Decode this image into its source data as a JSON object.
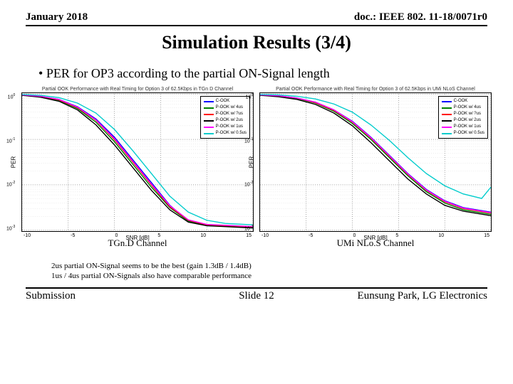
{
  "header": {
    "left": "January 2018",
    "right": "doc.: IEEE 802. 11-18/0071r0"
  },
  "title": "Simulation Results (3/4)",
  "bullet": "PER for OP3 according to the partial ON-Signal length",
  "legend": {
    "items": [
      {
        "label": "C-OOK",
        "color": "#0000ff"
      },
      {
        "label": "P-OOK w/ 4us",
        "color": "#008000"
      },
      {
        "label": "P-OOK w/ ?us",
        "color": "#ff0000"
      },
      {
        "label": "P-OOK w/ 2us",
        "color": "#000000"
      },
      {
        "label": "P-OOK w/ 1us",
        "color": "#ff00ff"
      },
      {
        "label": "P-OOK w/ 0.5us",
        "color": "#00cccc"
      }
    ]
  },
  "axes": {
    "ylabel": "PER",
    "xlabel": "SNR [dB]",
    "xlim": [
      -10,
      15
    ],
    "xticks": [
      -10,
      -5,
      0,
      5,
      10,
      15
    ],
    "ylim_exp": [
      -3,
      0
    ],
    "ytick_exp": [
      0,
      -1,
      -2,
      -3
    ],
    "grid_color": "#404040",
    "minor_grid_color": "#d0d0d0",
    "line_width": 1.4
  },
  "chart_left": {
    "small_title": "Partial OOK Performance with Real Timing for Option 3 of 62.5Kbps in TGn D Channel",
    "caption": "TGn.D Channel",
    "series": [
      {
        "color": "#0000ff",
        "pts": [
          [
            -10,
            -0.02
          ],
          [
            -8,
            -0.05
          ],
          [
            -6,
            -0.12
          ],
          [
            -4,
            -0.28
          ],
          [
            -2,
            -0.55
          ],
          [
            0,
            -0.95
          ],
          [
            2,
            -1.45
          ],
          [
            4,
            -1.95
          ],
          [
            6,
            -2.45
          ],
          [
            8,
            -2.8
          ],
          [
            10,
            -2.9
          ],
          [
            12,
            -2.9
          ],
          [
            15,
            -2.95
          ]
        ]
      },
      {
        "color": "#008000",
        "pts": [
          [
            -10,
            -0.02
          ],
          [
            -8,
            -0.06
          ],
          [
            -6,
            -0.14
          ],
          [
            -4,
            -0.32
          ],
          [
            -2,
            -0.62
          ],
          [
            0,
            -1.05
          ],
          [
            2,
            -1.55
          ],
          [
            4,
            -2.05
          ],
          [
            6,
            -2.5
          ],
          [
            8,
            -2.8
          ],
          [
            10,
            -2.88
          ],
          [
            12,
            -2.9
          ],
          [
            15,
            -2.93
          ]
        ]
      },
      {
        "color": "#ff0000",
        "pts": [
          [
            -10,
            -0.02
          ],
          [
            -8,
            -0.05
          ],
          [
            -6,
            -0.13
          ],
          [
            -4,
            -0.3
          ],
          [
            -2,
            -0.58
          ],
          [
            0,
            -1.0
          ],
          [
            2,
            -1.5
          ],
          [
            4,
            -2.0
          ],
          [
            6,
            -2.48
          ],
          [
            8,
            -2.78
          ],
          [
            10,
            -2.88
          ],
          [
            12,
            -2.9
          ],
          [
            15,
            -2.93
          ]
        ]
      },
      {
        "color": "#000000",
        "pts": [
          [
            -10,
            -0.03
          ],
          [
            -8,
            -0.07
          ],
          [
            -6,
            -0.16
          ],
          [
            -4,
            -0.35
          ],
          [
            -2,
            -0.68
          ],
          [
            0,
            -1.12
          ],
          [
            2,
            -1.62
          ],
          [
            4,
            -2.12
          ],
          [
            6,
            -2.55
          ],
          [
            8,
            -2.82
          ],
          [
            10,
            -2.9
          ],
          [
            12,
            -2.92
          ],
          [
            15,
            -2.95
          ]
        ]
      },
      {
        "color": "#ff00ff",
        "pts": [
          [
            -10,
            -0.02
          ],
          [
            -8,
            -0.05
          ],
          [
            -6,
            -0.12
          ],
          [
            -4,
            -0.29
          ],
          [
            -2,
            -0.57
          ],
          [
            0,
            -0.98
          ],
          [
            2,
            -1.48
          ],
          [
            4,
            -1.98
          ],
          [
            6,
            -2.46
          ],
          [
            8,
            -2.77
          ],
          [
            10,
            -2.87
          ],
          [
            12,
            -2.89
          ],
          [
            15,
            -2.92
          ]
        ]
      },
      {
        "color": "#00cccc",
        "pts": [
          [
            -10,
            -0.01
          ],
          [
            -8,
            -0.03
          ],
          [
            -6,
            -0.08
          ],
          [
            -4,
            -0.2
          ],
          [
            -2,
            -0.42
          ],
          [
            0,
            -0.78
          ],
          [
            2,
            -1.25
          ],
          [
            4,
            -1.75
          ],
          [
            6,
            -2.25
          ],
          [
            8,
            -2.6
          ],
          [
            10,
            -2.78
          ],
          [
            12,
            -2.85
          ],
          [
            15,
            -2.88
          ]
        ]
      }
    ]
  },
  "chart_right": {
    "small_title": "Partial OOK Performance with Real Timing for Option 3 of 62.5Kbps in UMi NLoS Channel",
    "caption": "UMi NLo.S Channel",
    "series": [
      {
        "color": "#0000ff",
        "pts": [
          [
            -10,
            -0.02
          ],
          [
            -8,
            -0.04
          ],
          [
            -6,
            -0.09
          ],
          [
            -4,
            -0.18
          ],
          [
            -2,
            -0.35
          ],
          [
            0,
            -0.6
          ],
          [
            2,
            -0.95
          ],
          [
            4,
            -1.35
          ],
          [
            6,
            -1.75
          ],
          [
            8,
            -2.1
          ],
          [
            10,
            -2.35
          ],
          [
            12,
            -2.5
          ],
          [
            15,
            -2.6
          ]
        ]
      },
      {
        "color": "#008000",
        "pts": [
          [
            -10,
            -0.02
          ],
          [
            -8,
            -0.05
          ],
          [
            -6,
            -0.1
          ],
          [
            -4,
            -0.2
          ],
          [
            -2,
            -0.38
          ],
          [
            0,
            -0.65
          ],
          [
            2,
            -1.0
          ],
          [
            4,
            -1.4
          ],
          [
            6,
            -1.8
          ],
          [
            8,
            -2.15
          ],
          [
            10,
            -2.4
          ],
          [
            12,
            -2.55
          ],
          [
            15,
            -2.65
          ]
        ]
      },
      {
        "color": "#ff0000",
        "pts": [
          [
            -10,
            -0.02
          ],
          [
            -8,
            -0.04
          ],
          [
            -6,
            -0.09
          ],
          [
            -4,
            -0.19
          ],
          [
            -2,
            -0.36
          ],
          [
            0,
            -0.62
          ],
          [
            2,
            -0.97
          ],
          [
            4,
            -1.37
          ],
          [
            6,
            -1.77
          ],
          [
            8,
            -2.12
          ],
          [
            10,
            -2.37
          ],
          [
            12,
            -2.52
          ],
          [
            15,
            -2.62
          ]
        ]
      },
      {
        "color": "#000000",
        "pts": [
          [
            -10,
            -0.03
          ],
          [
            -8,
            -0.06
          ],
          [
            -6,
            -0.12
          ],
          [
            -4,
            -0.23
          ],
          [
            -2,
            -0.42
          ],
          [
            0,
            -0.7
          ],
          [
            2,
            -1.07
          ],
          [
            4,
            -1.47
          ],
          [
            6,
            -1.87
          ],
          [
            8,
            -2.2
          ],
          [
            10,
            -2.45
          ],
          [
            12,
            -2.58
          ],
          [
            15,
            -2.68
          ]
        ]
      },
      {
        "color": "#ff00ff",
        "pts": [
          [
            -10,
            -0.02
          ],
          [
            -8,
            -0.04
          ],
          [
            -6,
            -0.09
          ],
          [
            -4,
            -0.18
          ],
          [
            -2,
            -0.35
          ],
          [
            0,
            -0.61
          ],
          [
            2,
            -0.96
          ],
          [
            4,
            -1.36
          ],
          [
            6,
            -1.76
          ],
          [
            8,
            -2.11
          ],
          [
            10,
            -2.36
          ],
          [
            12,
            -2.51
          ],
          [
            15,
            -2.61
          ]
        ]
      },
      {
        "color": "#00cccc",
        "pts": [
          [
            -10,
            -0.01
          ],
          [
            -8,
            -0.02
          ],
          [
            -6,
            -0.05
          ],
          [
            -4,
            -0.11
          ],
          [
            -2,
            -0.22
          ],
          [
            0,
            -0.4
          ],
          [
            2,
            -0.68
          ],
          [
            4,
            -1.02
          ],
          [
            6,
            -1.4
          ],
          [
            8,
            -1.75
          ],
          [
            10,
            -2.02
          ],
          [
            12,
            -2.2
          ],
          [
            14,
            -2.3
          ],
          [
            15,
            -2.05
          ]
        ]
      }
    ]
  },
  "notes": {
    "line1": "2us partial ON-Signal seems to be the best (gain 1.3dB / 1.4dB)",
    "line2": "1us / 4us partial ON-Signals also have comparable performance"
  },
  "footer": {
    "left": "Submission",
    "mid": "Slide 12",
    "right": "Eunsung Park, LG Electronics"
  }
}
